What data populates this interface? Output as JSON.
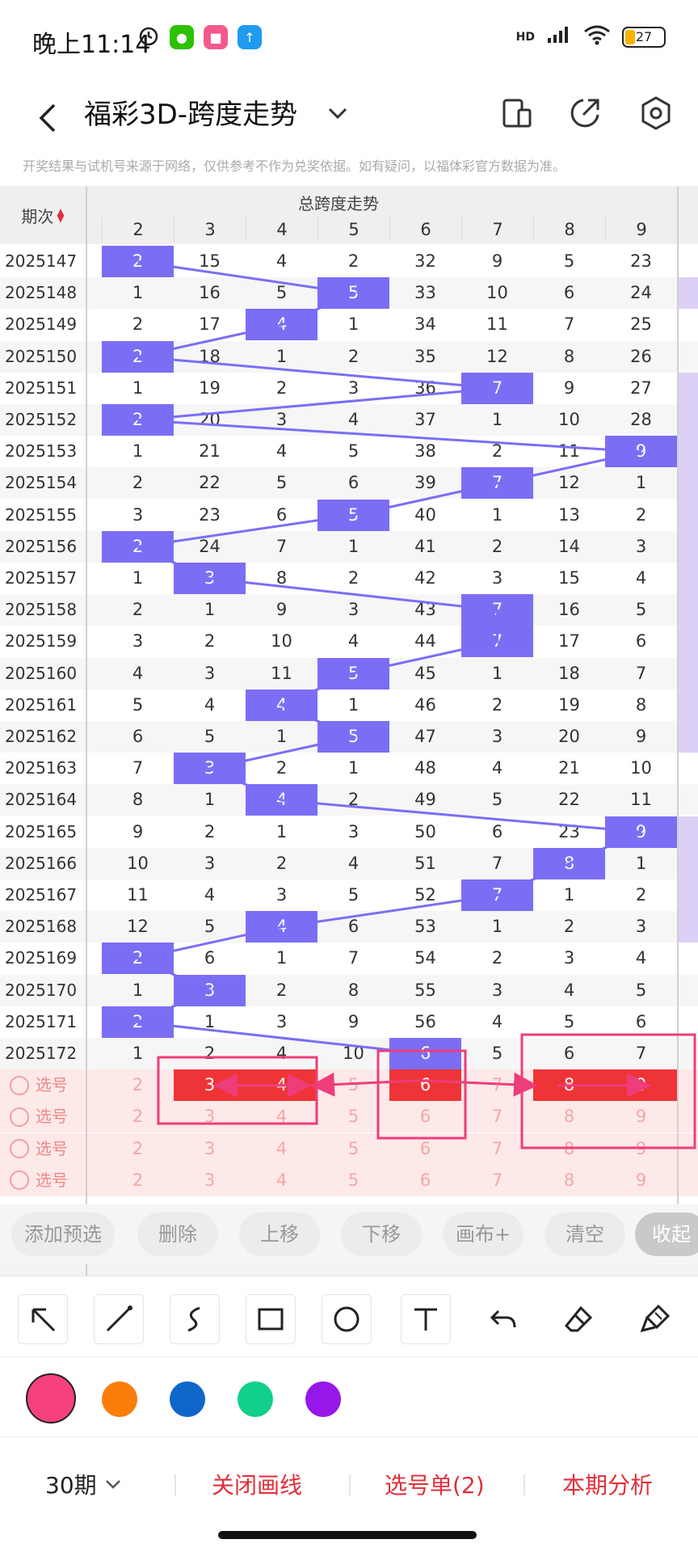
{
  "status": {
    "time": "晚上11:14",
    "network": "HD",
    "battery": "27"
  },
  "header": {
    "title": "福彩3D-跨度走势"
  },
  "disclaimer": "开奖结果与试机号来源于网络，仅供参考不作为兑奖依据。如有疑问，以福体彩官方数据为准。",
  "table": {
    "issue_header": "期次",
    "group_header": "总跨度走势",
    "columns": [
      "2",
      "3",
      "4",
      "5",
      "6",
      "7",
      "8",
      "9"
    ],
    "rows": [
      {
        "issue": "2025147",
        "cells": [
          "2",
          "15",
          "4",
          "2",
          "32",
          "9",
          "5",
          "23"
        ],
        "hit": 0
      },
      {
        "issue": "2025148",
        "cells": [
          "1",
          "16",
          "5",
          "5",
          "33",
          "10",
          "6",
          "24"
        ],
        "hit": 3
      },
      {
        "issue": "2025149",
        "cells": [
          "2",
          "17",
          "4",
          "1",
          "34",
          "11",
          "7",
          "25"
        ],
        "hit": 2
      },
      {
        "issue": "2025150",
        "cells": [
          "2",
          "18",
          "1",
          "2",
          "35",
          "12",
          "8",
          "26"
        ],
        "hit": 0
      },
      {
        "issue": "2025151",
        "cells": [
          "1",
          "19",
          "2",
          "3",
          "36",
          "7",
          "9",
          "27"
        ],
        "hit": 5
      },
      {
        "issue": "2025152",
        "cells": [
          "2",
          "20",
          "3",
          "4",
          "37",
          "1",
          "10",
          "28"
        ],
        "hit": 0
      },
      {
        "issue": "2025153",
        "cells": [
          "1",
          "21",
          "4",
          "5",
          "38",
          "2",
          "11",
          "9"
        ],
        "hit": 7
      },
      {
        "issue": "2025154",
        "cells": [
          "2",
          "22",
          "5",
          "6",
          "39",
          "7",
          "12",
          "1"
        ],
        "hit": 5
      },
      {
        "issue": "2025155",
        "cells": [
          "3",
          "23",
          "6",
          "5",
          "40",
          "1",
          "13",
          "2"
        ],
        "hit": 3
      },
      {
        "issue": "2025156",
        "cells": [
          "2",
          "24",
          "7",
          "1",
          "41",
          "2",
          "14",
          "3"
        ],
        "hit": 0
      },
      {
        "issue": "2025157",
        "cells": [
          "1",
          "3",
          "8",
          "2",
          "42",
          "3",
          "15",
          "4"
        ],
        "hit": 1
      },
      {
        "issue": "2025158",
        "cells": [
          "2",
          "1",
          "9",
          "3",
          "43",
          "7",
          "16",
          "5"
        ],
        "hit": 5
      },
      {
        "issue": "2025159",
        "cells": [
          "3",
          "2",
          "10",
          "4",
          "44",
          "7",
          "17",
          "6"
        ],
        "hit": 5
      },
      {
        "issue": "2025160",
        "cells": [
          "4",
          "3",
          "11",
          "5",
          "45",
          "1",
          "18",
          "7"
        ],
        "hit": 3
      },
      {
        "issue": "2025161",
        "cells": [
          "5",
          "4",
          "4",
          "1",
          "46",
          "2",
          "19",
          "8"
        ],
        "hit": 2
      },
      {
        "issue": "2025162",
        "cells": [
          "6",
          "5",
          "1",
          "5",
          "47",
          "3",
          "20",
          "9"
        ],
        "hit": 3
      },
      {
        "issue": "2025163",
        "cells": [
          "7",
          "3",
          "2",
          "1",
          "48",
          "4",
          "21",
          "10"
        ],
        "hit": 1
      },
      {
        "issue": "2025164",
        "cells": [
          "8",
          "1",
          "4",
          "2",
          "49",
          "5",
          "22",
          "11"
        ],
        "hit": 2
      },
      {
        "issue": "2025165",
        "cells": [
          "9",
          "2",
          "1",
          "3",
          "50",
          "6",
          "23",
          "9"
        ],
        "hit": 7
      },
      {
        "issue": "2025166",
        "cells": [
          "10",
          "3",
          "2",
          "4",
          "51",
          "7",
          "8",
          "1"
        ],
        "hit": 6
      },
      {
        "issue": "2025167",
        "cells": [
          "11",
          "4",
          "3",
          "5",
          "52",
          "7",
          "1",
          "2"
        ],
        "hit": 5
      },
      {
        "issue": "2025168",
        "cells": [
          "12",
          "5",
          "4",
          "6",
          "53",
          "1",
          "2",
          "3"
        ],
        "hit": 2
      },
      {
        "issue": "2025169",
        "cells": [
          "2",
          "6",
          "1",
          "7",
          "54",
          "2",
          "3",
          "4"
        ],
        "hit": 0
      },
      {
        "issue": "2025170",
        "cells": [
          "1",
          "3",
          "2",
          "8",
          "55",
          "3",
          "4",
          "5"
        ],
        "hit": 1
      },
      {
        "issue": "2025171",
        "cells": [
          "2",
          "1",
          "3",
          "9",
          "56",
          "4",
          "5",
          "6"
        ],
        "hit": 0
      },
      {
        "issue": "2025172",
        "cells": [
          "1",
          "2",
          "4",
          "10",
          "6",
          "5",
          "6",
          "7"
        ],
        "hit": 4
      }
    ],
    "pick_rows": [
      {
        "label": "选号",
        "cells": [
          "2",
          "3",
          "4",
          "5",
          "6",
          "7",
          "8",
          "9"
        ],
        "selected": [
          1,
          2,
          4,
          6,
          7
        ]
      },
      {
        "label": "选号",
        "cells": [
          "2",
          "3",
          "4",
          "5",
          "6",
          "7",
          "8",
          "9"
        ],
        "selected": []
      },
      {
        "label": "选号",
        "cells": [
          "2",
          "3",
          "4",
          "5",
          "6",
          "7",
          "8",
          "9"
        ],
        "selected": []
      },
      {
        "label": "选号",
        "cells": [
          "2",
          "3",
          "4",
          "5",
          "6",
          "7",
          "8",
          "9"
        ],
        "selected": []
      }
    ]
  },
  "actions": {
    "add": "添加预选",
    "delete": "删除",
    "up": "上移",
    "down": "下移",
    "canvas": "画布+",
    "clear": "清空",
    "fold": "收起"
  },
  "tools": [
    "arrow-icon",
    "line-icon",
    "freehand-icon",
    "rectangle-icon",
    "circle-icon",
    "text-icon",
    "undo-icon",
    "eraser-icon",
    "clear-brush-icon"
  ],
  "palette": [
    "#f5407d",
    "#fb7d0a",
    "#0f66c9",
    "#12cf8c",
    "#9717e8"
  ],
  "bottom": {
    "period": "30期",
    "close_lines": "关闭画线",
    "pick_list": "选号单(2)",
    "analysis": "本期分析"
  },
  "colors": {
    "hit": "#7b6ef5",
    "selected": "#ef3437",
    "accent_red": "#e0303a",
    "annotation_pink": "#ee3d7b"
  }
}
